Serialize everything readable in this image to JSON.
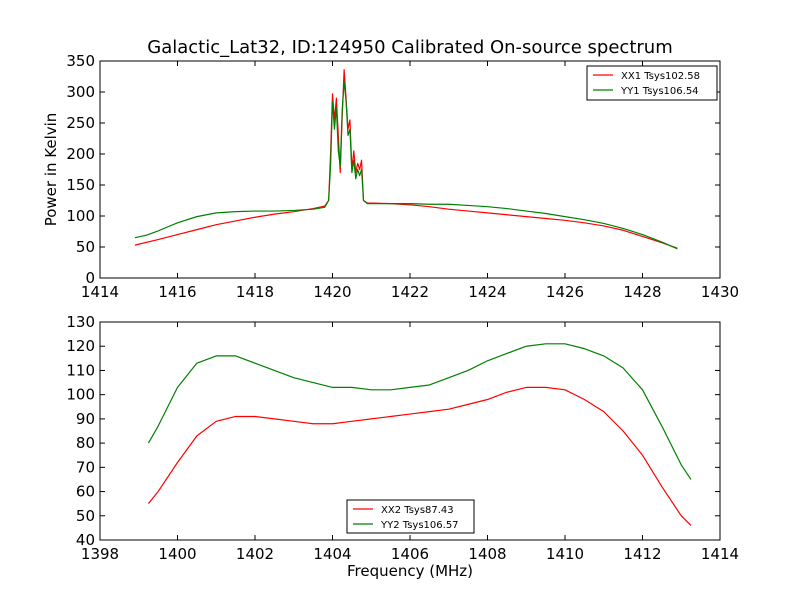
{
  "title": "Galactic_Lat32, ID:124950 Calibrated On-source spectrum",
  "chart_data": [
    {
      "type": "line",
      "xlabel": "",
      "ylabel": "Power in Kelvin",
      "xlim": [
        1414,
        1430
      ],
      "ylim": [
        0,
        350
      ],
      "xticks": [
        "1414",
        "1416",
        "1418",
        "1420",
        "1422",
        "1424",
        "1426",
        "1428",
        "1430"
      ],
      "yticks": [
        "0",
        "50",
        "100",
        "150",
        "200",
        "250",
        "300",
        "350"
      ],
      "legend_position": "top-right",
      "series": [
        {
          "name": "XX1 Tsys102.58",
          "color": "#ff0000",
          "points": [
            [
              1414.9,
              53
            ],
            [
              1415.5,
              62
            ],
            [
              1416,
              70
            ],
            [
              1416.5,
              78
            ],
            [
              1417,
              86
            ],
            [
              1417.5,
              92
            ],
            [
              1418,
              98
            ],
            [
              1418.5,
              103
            ],
            [
              1419,
              107
            ],
            [
              1419.5,
              112
            ],
            [
              1419.8,
              116
            ],
            [
              1419.9,
              125
            ],
            [
              1419.95,
              200
            ],
            [
              1420.0,
              297
            ],
            [
              1420.05,
              255
            ],
            [
              1420.1,
              290
            ],
            [
              1420.15,
              230
            ],
            [
              1420.2,
              170
            ],
            [
              1420.25,
              260
            ],
            [
              1420.3,
              336
            ],
            [
              1420.35,
              290
            ],
            [
              1420.4,
              240
            ],
            [
              1420.45,
              255
            ],
            [
              1420.5,
              175
            ],
            [
              1420.55,
              205
            ],
            [
              1420.6,
              170
            ],
            [
              1420.65,
              185
            ],
            [
              1420.7,
              175
            ],
            [
              1420.75,
              190
            ],
            [
              1420.8,
              125
            ],
            [
              1420.9,
              121
            ],
            [
              1421.5,
              120
            ],
            [
              1422,
              118
            ],
            [
              1422.5,
              115
            ],
            [
              1423,
              111
            ],
            [
              1423.5,
              108
            ],
            [
              1424,
              105
            ],
            [
              1424.5,
              102
            ],
            [
              1425,
              99
            ],
            [
              1425.5,
              96
            ],
            [
              1426,
              93
            ],
            [
              1426.5,
              89
            ],
            [
              1427,
              84
            ],
            [
              1427.5,
              77
            ],
            [
              1428,
              67
            ],
            [
              1428.5,
              57
            ],
            [
              1428.9,
              48
            ]
          ]
        },
        {
          "name": "YY1 Tsys106.54",
          "color": "#008000",
          "points": [
            [
              1414.9,
              65
            ],
            [
              1415.2,
              69
            ],
            [
              1415.5,
              76
            ],
            [
              1416,
              89
            ],
            [
              1416.5,
              99
            ],
            [
              1417,
              105
            ],
            [
              1417.5,
              107
            ],
            [
              1418,
              108
            ],
            [
              1418.5,
              108
            ],
            [
              1419,
              109
            ],
            [
              1419.5,
              111
            ],
            [
              1419.8,
              114
            ],
            [
              1419.9,
              125
            ],
            [
              1419.95,
              180
            ],
            [
              1420.0,
              285
            ],
            [
              1420.05,
              240
            ],
            [
              1420.1,
              275
            ],
            [
              1420.15,
              205
            ],
            [
              1420.2,
              180
            ],
            [
              1420.25,
              270
            ],
            [
              1420.3,
              317
            ],
            [
              1420.35,
              285
            ],
            [
              1420.4,
              230
            ],
            [
              1420.45,
              240
            ],
            [
              1420.5,
              170
            ],
            [
              1420.55,
              190
            ],
            [
              1420.6,
              160
            ],
            [
              1420.65,
              175
            ],
            [
              1420.7,
              165
            ],
            [
              1420.75,
              175
            ],
            [
              1420.8,
              125
            ],
            [
              1420.9,
              120
            ],
            [
              1421.5,
              120
            ],
            [
              1422,
              120
            ],
            [
              1422.5,
              119
            ],
            [
              1423,
              119
            ],
            [
              1423.5,
              117
            ],
            [
              1424,
              115
            ],
            [
              1424.5,
              112
            ],
            [
              1425,
              108
            ],
            [
              1425.5,
              104
            ],
            [
              1426,
              99
            ],
            [
              1426.5,
              94
            ],
            [
              1427,
              88
            ],
            [
              1427.5,
              80
            ],
            [
              1428,
              70
            ],
            [
              1428.5,
              58
            ],
            [
              1428.9,
              47
            ]
          ]
        }
      ]
    },
    {
      "type": "line",
      "xlabel": "Frequency (MHz)",
      "ylabel": "",
      "xlim": [
        1398,
        1414
      ],
      "ylim": [
        40,
        130
      ],
      "xticks": [
        "1398",
        "1400",
        "1402",
        "1404",
        "1406",
        "1408",
        "1410",
        "1412",
        "1414"
      ],
      "yticks": [
        "40",
        "50",
        "60",
        "70",
        "80",
        "90",
        "100",
        "110",
        "120",
        "130"
      ],
      "legend_position": "bottom-center",
      "series": [
        {
          "name": "XX2 Tsys87.43",
          "color": "#ff0000",
          "points": [
            [
              1399.25,
              55
            ],
            [
              1399.5,
              60
            ],
            [
              1400,
              72
            ],
            [
              1400.5,
              83
            ],
            [
              1401,
              89
            ],
            [
              1401.5,
              91
            ],
            [
              1402,
              91
            ],
            [
              1402.5,
              90
            ],
            [
              1403,
              89
            ],
            [
              1403.5,
              88
            ],
            [
              1404,
              88
            ],
            [
              1404.5,
              89
            ],
            [
              1405,
              90
            ],
            [
              1405.5,
              91
            ],
            [
              1406,
              92
            ],
            [
              1406.5,
              93
            ],
            [
              1407,
              94
            ],
            [
              1407.5,
              96
            ],
            [
              1408,
              98
            ],
            [
              1408.5,
              101
            ],
            [
              1409,
              103
            ],
            [
              1409.5,
              103
            ],
            [
              1410,
              102
            ],
            [
              1410.5,
              98
            ],
            [
              1411,
              93
            ],
            [
              1411.5,
              85
            ],
            [
              1412,
              75
            ],
            [
              1412.5,
              62
            ],
            [
              1413,
              50
            ],
            [
              1413.25,
              46
            ]
          ]
        },
        {
          "name": "YY2 Tsys106.57",
          "color": "#008000",
          "points": [
            [
              1399.25,
              80
            ],
            [
              1399.5,
              87
            ],
            [
              1400,
              103
            ],
            [
              1400.5,
              113
            ],
            [
              1401,
              116
            ],
            [
              1401.5,
              116
            ],
            [
              1402,
              113
            ],
            [
              1402.5,
              110
            ],
            [
              1403,
              107
            ],
            [
              1403.5,
              105
            ],
            [
              1404,
              103
            ],
            [
              1404.5,
              103
            ],
            [
              1405,
              102
            ],
            [
              1405.5,
              102
            ],
            [
              1406,
              103
            ],
            [
              1406.5,
              104
            ],
            [
              1407,
              107
            ],
            [
              1407.5,
              110
            ],
            [
              1408,
              114
            ],
            [
              1408.5,
              117
            ],
            [
              1409,
              120
            ],
            [
              1409.5,
              121
            ],
            [
              1410,
              121
            ],
            [
              1410.5,
              119
            ],
            [
              1411,
              116
            ],
            [
              1411.5,
              111
            ],
            [
              1412,
              102
            ],
            [
              1412.5,
              87
            ],
            [
              1413,
              71
            ],
            [
              1413.25,
              65
            ]
          ]
        }
      ]
    }
  ]
}
